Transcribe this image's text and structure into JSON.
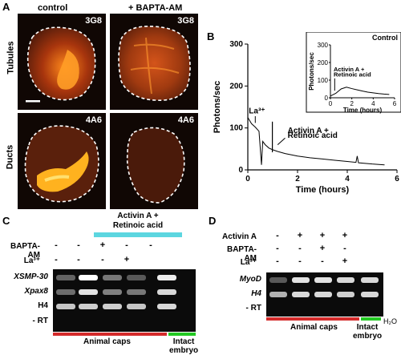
{
  "panel_a": {
    "letter": "A",
    "col_control": "control",
    "col_bapta": "+ BAPTA-AM",
    "row_tubules": "Tubules",
    "row_ducts": "Ducts",
    "marker_tl": "3G8",
    "marker_tr": "3G8",
    "marker_bl": "4A6",
    "marker_br": "4A6"
  },
  "panel_b": {
    "letter": "B",
    "annotation_la": "La³⁺",
    "annotation_activin_1": "Activin A +",
    "annotation_activin_2": "Retinoic acid",
    "inset_title": "Control",
    "inset_annotation_1": "Activin A +",
    "inset_annotation_2": "Retinoic acid"
  },
  "chart_data": [
    {
      "type": "line",
      "xlabel": "Time (hours)",
      "ylabel": "Photons/sec",
      "xlim": [
        0,
        6
      ],
      "ylim": [
        0,
        300
      ],
      "xticks": [
        0,
        2,
        4,
        6
      ],
      "yticks": [
        0,
        100,
        200,
        300
      ],
      "x": [
        0.0,
        0.15,
        0.3,
        0.45,
        0.55,
        0.6,
        0.7,
        0.85,
        1.0,
        1.2,
        1.5,
        2.0,
        2.5,
        3.0,
        3.5,
        4.0,
        4.35,
        4.4,
        4.45,
        5.0,
        5.5
      ],
      "y": [
        125,
        110,
        102,
        92,
        12,
        68,
        60,
        52,
        48,
        44,
        39,
        33,
        29,
        26,
        23,
        20,
        18,
        33,
        17,
        14,
        12
      ]
    },
    {
      "type": "line",
      "title": "Control",
      "xlabel": "Time (hours)",
      "ylabel": "Photons/sec",
      "xlim": [
        0,
        6
      ],
      "ylim": [
        0,
        300
      ],
      "xticks": [
        0,
        2,
        4,
        6
      ],
      "yticks": [
        0,
        100,
        200,
        300
      ],
      "x": [
        0.0,
        0.5,
        1.0,
        1.5,
        2.0,
        2.5,
        3.0,
        3.5,
        4.0,
        4.5,
        5.0,
        5.5
      ],
      "y": [
        10,
        25,
        50,
        60,
        52,
        45,
        38,
        32,
        28,
        24,
        21,
        19
      ]
    }
  ],
  "panel_c": {
    "letter": "C",
    "treatment_1": "Activin A +",
    "treatment_2": "Retinoic acid",
    "row_bapta": "BAPTA-AM",
    "row_la": "La³⁺",
    "signs_bapta": [
      "-",
      "-",
      "+",
      "-",
      "-"
    ],
    "signs_la": [
      "-",
      "-",
      "-",
      "+",
      ""
    ],
    "genes": [
      "XSMP-30",
      "Xpax8",
      "H4",
      "- RT"
    ],
    "footer_animal": "Animal caps",
    "footer_intact_1": "Intact",
    "footer_intact_2": "embryo"
  },
  "panel_d": {
    "letter": "D",
    "row_activin": "Activin A",
    "row_bapta": "BAPTA-AM",
    "row_la": "La³⁺",
    "signs_activin": [
      "-",
      "+",
      "+",
      "+"
    ],
    "signs_bapta": [
      "-",
      "-",
      "+",
      "-"
    ],
    "signs_la": [
      "-",
      "-",
      "-",
      "+"
    ],
    "genes": [
      "MyoD",
      "H4",
      "- RT"
    ],
    "footer_animal": "Animal caps",
    "footer_intact_1": "Intact",
    "footer_intact_2": "embryo",
    "footer_water": "H₂O"
  },
  "colors": {
    "animal_caps_bar": "#d42a2a",
    "intact_bar": "#22c922",
    "treatment_box": "#5cd6e0",
    "fluor_dim": "#6e2a0e",
    "fluor_bright": "#ffb21f"
  }
}
